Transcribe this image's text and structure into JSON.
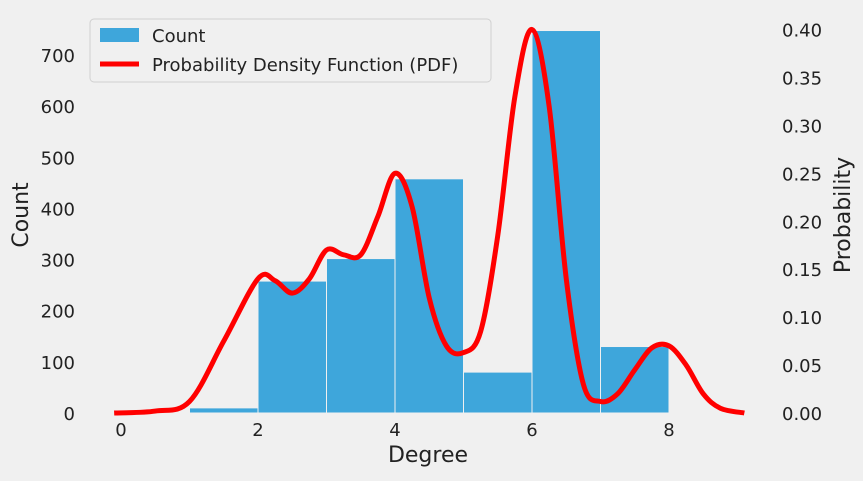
{
  "chart_data": {
    "type": "bar",
    "xlabel": "Degree",
    "ylabel": "Count",
    "y2label": "Probability",
    "xlim": [
      -0.25,
      9.1
    ],
    "ylim": [
      0,
      750
    ],
    "y2lim": [
      0,
      0.4
    ],
    "xticks": [
      "0",
      "2",
      "4",
      "6",
      "8"
    ],
    "yticks": [
      "0",
      "100",
      "200",
      "300",
      "400",
      "500",
      "600",
      "700"
    ],
    "y2ticks": [
      "0.00",
      "0.05",
      "0.10",
      "0.15",
      "0.20",
      "0.25",
      "0.30",
      "0.35",
      "0.40"
    ],
    "bins": [
      {
        "x0": 1,
        "x1": 2,
        "value": 10
      },
      {
        "x0": 2,
        "x1": 3,
        "value": 258
      },
      {
        "x0": 3,
        "x1": 4,
        "value": 302
      },
      {
        "x0": 4,
        "x1": 5,
        "value": 458
      },
      {
        "x0": 5,
        "x1": 6,
        "value": 80
      },
      {
        "x0": 6,
        "x1": 7,
        "value": 748
      },
      {
        "x0": 7,
        "x1": 8,
        "value": 130
      }
    ],
    "series": [
      {
        "name": "Count",
        "type": "histogram",
        "color": "#3ea6db"
      },
      {
        "name": "Probability Density Function (PDF)",
        "type": "line",
        "color": "#ff0000",
        "axis": "right",
        "x": [
          -0.1,
          0.5,
          1.0,
          1.5,
          2.0,
          2.25,
          2.5,
          2.75,
          3.0,
          3.25,
          3.5,
          3.75,
          4.0,
          4.25,
          4.5,
          4.75,
          5.0,
          5.25,
          5.5,
          5.75,
          6.0,
          6.25,
          6.5,
          6.75,
          7.0,
          7.25,
          7.5,
          7.75,
          8.0,
          8.25,
          8.5,
          8.75,
          9.1
        ],
        "y": [
          0.0,
          0.002,
          0.012,
          0.075,
          0.14,
          0.138,
          0.125,
          0.14,
          0.17,
          0.165,
          0.165,
          0.205,
          0.25,
          0.215,
          0.12,
          0.07,
          0.063,
          0.085,
          0.185,
          0.33,
          0.4,
          0.32,
          0.14,
          0.03,
          0.012,
          0.02,
          0.045,
          0.068,
          0.07,
          0.05,
          0.02,
          0.005,
          0.0
        ]
      }
    ],
    "legend": "top-left",
    "grid": false
  }
}
